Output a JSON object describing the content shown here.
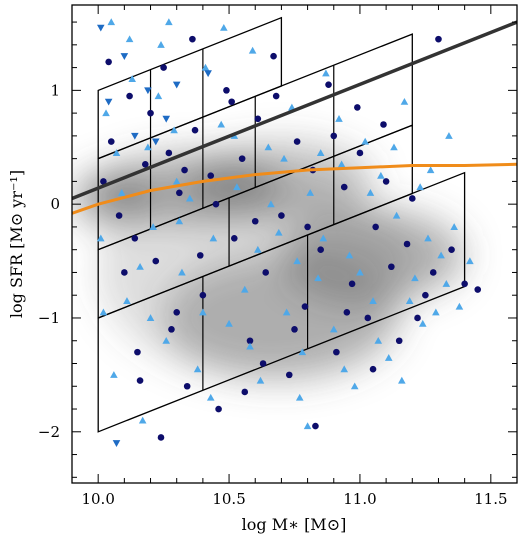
{
  "chart_data": {
    "type": "scatter",
    "title": "",
    "xlabel": "log M∗ [M⊙]",
    "ylabel": "log SFR [M⊙ yr⁻¹]",
    "xlim": [
      9.9,
      11.6
    ],
    "ylim": [
      -2.45,
      1.75
    ],
    "xticks": [
      "10.0",
      "10.5",
      "11.0",
      "11.5"
    ],
    "xtick_values": [
      10.0,
      10.5,
      11.0,
      11.5
    ],
    "yticks": [
      "−2",
      "−1",
      "0",
      "1"
    ],
    "ytick_values": [
      -2,
      -1,
      0,
      1
    ],
    "grid": false,
    "legend": "none",
    "colors": {
      "density": "#555555",
      "dark_markers": "#0d0d6b",
      "light_markers": "#4fa8e8",
      "main_sequence_line": "#333333",
      "fit_curve": "#f08c1a",
      "boxes": "#000000"
    },
    "density_contours": [
      {
        "cx": 10.05,
        "cy": 0.05,
        "rx": 0.15,
        "ry": 0.22,
        "level": 0.55
      },
      {
        "cx": 10.35,
        "cy": 0.15,
        "rx": 0.35,
        "ry": 0.3,
        "level": 0.45
      },
      {
        "cx": 10.7,
        "cy": 0.2,
        "rx": 0.35,
        "ry": 0.35,
        "level": 0.35
      },
      {
        "cx": 10.7,
        "cy": -1.0,
        "rx": 0.45,
        "ry": 0.55,
        "level": 0.35
      },
      {
        "cx": 11.05,
        "cy": -0.45,
        "rx": 0.35,
        "ry": 0.4,
        "level": 0.45
      },
      {
        "cx": 10.6,
        "cy": -0.6,
        "rx": 0.6,
        "ry": 0.9,
        "level": 0.2
      }
    ],
    "main_sequence_line": {
      "x": [
        9.9,
        11.6
      ],
      "y": [
        0.05,
        1.6
      ]
    },
    "fit_curve": {
      "x": [
        9.9,
        10.0,
        10.2,
        10.4,
        10.6,
        10.8,
        11.0,
        11.2,
        11.4,
        11.6
      ],
      "y": [
        -0.08,
        0.0,
        0.12,
        0.2,
        0.26,
        0.3,
        0.32,
        0.34,
        0.34,
        0.35
      ]
    },
    "bin_boxes": [
      {
        "x0": 10.0,
        "x1": 10.7,
        "y_low_at_x0": 0.4,
        "height": 0.6,
        "dividers": [
          10.2,
          10.4
        ]
      },
      {
        "x0": 10.0,
        "x1": 11.2,
        "y_low_at_x0": -0.4,
        "height": 0.8,
        "dividers": [
          10.2,
          10.4,
          10.6,
          10.9
        ]
      },
      {
        "x0": 10.0,
        "x1": 11.2,
        "y_low_at_x0": -1.0,
        "height": 0.6,
        "dividers": [
          10.5,
          10.9
        ]
      },
      {
        "x0": 10.0,
        "x1": 11.4,
        "y_low_at_x0": -2.0,
        "height": 1.0,
        "dividers": [
          10.4,
          10.8
        ]
      }
    ],
    "series": [
      {
        "marker": "circle",
        "color": "#0d0d6b",
        "points": [
          [
            10.02,
            0.2
          ],
          [
            10.05,
            0.55
          ],
          [
            10.08,
            -0.1
          ],
          [
            10.12,
            0.95
          ],
          [
            10.15,
            -1.3
          ],
          [
            10.18,
            0.35
          ],
          [
            10.22,
            -0.5
          ],
          [
            10.25,
            1.2
          ],
          [
            10.28,
            -1.1
          ],
          [
            10.31,
            0.1
          ],
          [
            10.34,
            -1.6
          ],
          [
            10.37,
            0.65
          ],
          [
            10.4,
            -0.8
          ],
          [
            10.43,
            0.25
          ],
          [
            10.46,
            -1.8
          ],
          [
            10.49,
            1.0
          ],
          [
            10.52,
            -0.3
          ],
          [
            10.55,
            0.4
          ],
          [
            10.58,
            -1.2
          ],
          [
            10.61,
            0.75
          ],
          [
            10.64,
            -0.6
          ],
          [
            10.67,
            1.3
          ],
          [
            10.7,
            -0.1
          ],
          [
            10.73,
            -1.5
          ],
          [
            10.76,
            0.55
          ],
          [
            10.79,
            -0.9
          ],
          [
            10.82,
            0.3
          ],
          [
            10.85,
            -0.4
          ],
          [
            10.88,
            1.05
          ],
          [
            10.91,
            -1.3
          ],
          [
            10.94,
            0.15
          ],
          [
            10.97,
            -0.7
          ],
          [
            11.0,
            0.45
          ],
          [
            11.03,
            -1.0
          ],
          [
            11.06,
            -0.2
          ],
          [
            11.09,
            0.7
          ],
          [
            11.12,
            -0.55
          ],
          [
            11.15,
            -1.2
          ],
          [
            11.2,
            0.05
          ],
          [
            11.25,
            -0.8
          ],
          [
            11.3,
            1.45
          ],
          [
            11.35,
            -0.4
          ],
          [
            11.4,
            -0.7
          ],
          [
            10.1,
            -0.6
          ],
          [
            10.2,
            0.8
          ],
          [
            10.3,
            -0.95
          ],
          [
            10.45,
            0.0
          ],
          [
            10.6,
            -0.15
          ],
          [
            10.75,
            -1.1
          ],
          [
            10.9,
            0.6
          ],
          [
            11.05,
            -1.45
          ],
          [
            11.18,
            -0.35
          ],
          [
            10.16,
            -1.55
          ],
          [
            10.24,
            -2.05
          ],
          [
            10.36,
            1.45
          ],
          [
            10.56,
            -1.65
          ],
          [
            10.68,
            0.95
          ],
          [
            10.83,
            -1.95
          ],
          [
            10.99,
            0.85
          ],
          [
            11.22,
            -1.0
          ],
          [
            10.04,
            1.25
          ],
          [
            10.14,
            -0.3
          ],
          [
            10.27,
            0.45
          ],
          [
            10.39,
            -0.45
          ],
          [
            10.51,
            0.9
          ],
          [
            10.63,
            -1.4
          ],
          [
            10.8,
            -0.2
          ],
          [
            10.95,
            -0.95
          ],
          [
            11.1,
            0.2
          ],
          [
            11.28,
            -0.6
          ],
          [
            11.45,
            -0.75
          ],
          [
            10.33,
            0.3
          ]
        ]
      },
      {
        "marker": "triangle-up",
        "color": "#4fa8e8",
        "points": [
          [
            10.01,
            -0.3
          ],
          [
            10.03,
            0.8
          ],
          [
            10.06,
            -1.5
          ],
          [
            10.09,
            0.1
          ],
          [
            10.11,
            -0.85
          ],
          [
            10.13,
            1.1
          ],
          [
            10.17,
            -1.9
          ],
          [
            10.19,
            0.5
          ],
          [
            10.21,
            -0.2
          ],
          [
            10.24,
            1.4
          ],
          [
            10.26,
            -1.2
          ],
          [
            10.29,
            0.65
          ],
          [
            10.32,
            -0.6
          ],
          [
            10.35,
            0.05
          ],
          [
            10.38,
            -1.45
          ],
          [
            10.41,
            1.2
          ],
          [
            10.44,
            -0.3
          ],
          [
            10.47,
            0.7
          ],
          [
            10.5,
            -1.05
          ],
          [
            10.53,
            0.15
          ],
          [
            10.56,
            -0.75
          ],
          [
            10.59,
            1.35
          ],
          [
            10.62,
            -1.55
          ],
          [
            10.65,
            0.5
          ],
          [
            10.69,
            -0.25
          ],
          [
            10.72,
            -0.95
          ],
          [
            10.74,
            0.85
          ],
          [
            10.78,
            -1.3
          ],
          [
            10.81,
            0.1
          ],
          [
            10.84,
            -0.65
          ],
          [
            10.87,
            1.15
          ],
          [
            10.9,
            -1.1
          ],
          [
            10.93,
            0.35
          ],
          [
            10.96,
            -0.45
          ],
          [
            10.98,
            -1.6
          ],
          [
            11.02,
            0.55
          ],
          [
            11.05,
            -0.85
          ],
          [
            11.08,
            0.25
          ],
          [
            11.11,
            -1.35
          ],
          [
            11.14,
            -0.1
          ],
          [
            11.17,
            0.9
          ],
          [
            11.21,
            -0.65
          ],
          [
            11.24,
            -1.05
          ],
          [
            11.27,
            0.3
          ],
          [
            11.31,
            -0.45
          ],
          [
            11.34,
            0.6
          ],
          [
            11.38,
            -0.9
          ],
          [
            11.42,
            -0.5
          ],
          [
            10.07,
            0.45
          ],
          [
            10.16,
            -0.55
          ],
          [
            10.23,
            0.95
          ],
          [
            10.31,
            -0.15
          ],
          [
            10.43,
            -1.7
          ],
          [
            10.52,
            0.6
          ],
          [
            10.61,
            -0.4
          ],
          [
            10.71,
            0.4
          ],
          [
            10.77,
            -1.7
          ],
          [
            10.86,
            -0.3
          ],
          [
            10.92,
            0.75
          ],
          [
            11.0,
            -0.6
          ],
          [
            11.07,
            -1.2
          ],
          [
            11.13,
            0.5
          ],
          [
            11.19,
            -0.85
          ],
          [
            11.26,
            -0.3
          ],
          [
            11.33,
            -0.7
          ],
          [
            10.02,
            -0.95
          ],
          [
            10.12,
            1.45
          ],
          [
            10.2,
            -1.0
          ],
          [
            10.3,
            0.2
          ],
          [
            10.4,
            -0.95
          ],
          [
            10.48,
            1.55
          ],
          [
            10.58,
            -1.25
          ],
          [
            10.66,
            0.0
          ],
          [
            10.76,
            -0.5
          ],
          [
            10.85,
            0.45
          ],
          [
            10.94,
            -1.45
          ],
          [
            11.04,
            0.1
          ],
          [
            11.16,
            -1.55
          ],
          [
            11.23,
            0.15
          ],
          [
            11.29,
            -0.95
          ],
          [
            11.36,
            -0.2
          ],
          [
            10.05,
            1.6
          ],
          [
            10.27,
            1.6
          ],
          [
            10.8,
            -1.95
          ]
        ]
      },
      {
        "marker": "triangle-down",
        "color": "#1e6bc4",
        "points": [
          [
            10.01,
            1.55
          ],
          [
            10.04,
            0.9
          ],
          [
            10.1,
            1.3
          ],
          [
            10.22,
            0.55
          ],
          [
            10.3,
            1.05
          ],
          [
            10.07,
            -2.1
          ],
          [
            10.19,
            1.0
          ],
          [
            10.42,
            1.15
          ],
          [
            10.14,
            0.6
          ],
          [
            10.26,
            0.75
          ]
        ]
      }
    ]
  }
}
